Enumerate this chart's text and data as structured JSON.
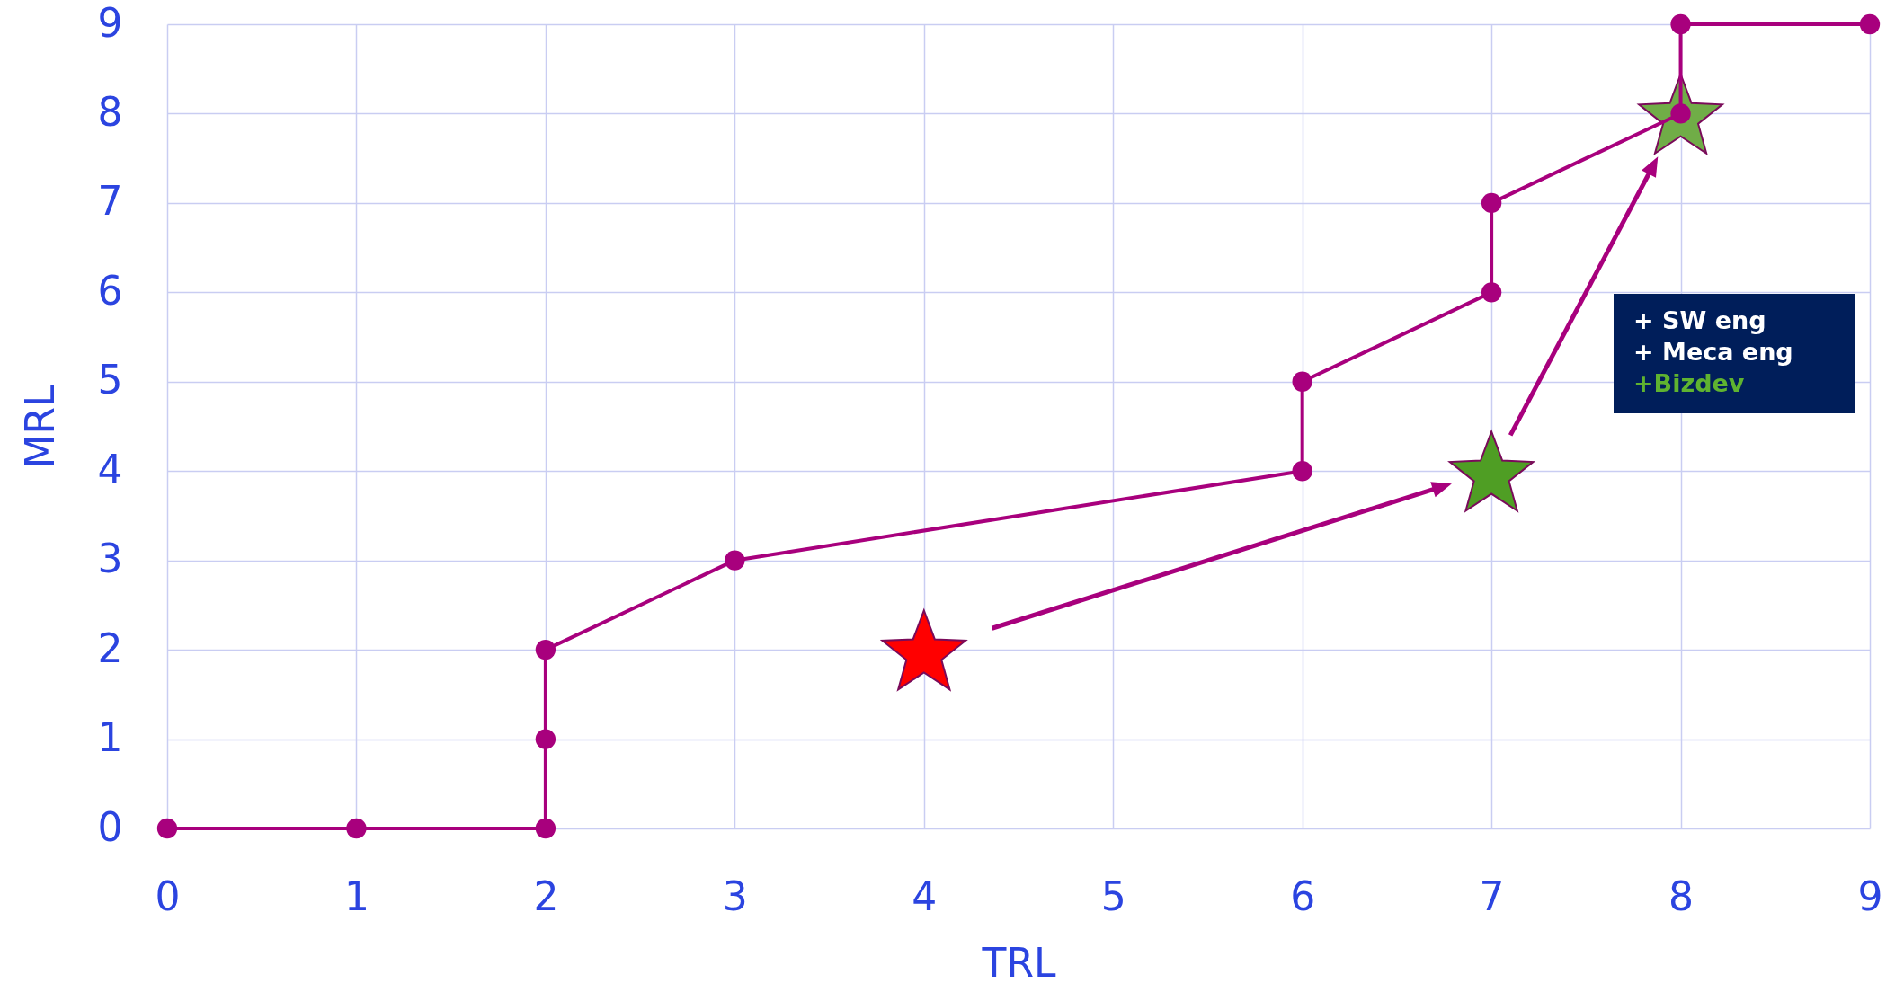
{
  "chart_data": {
    "type": "line",
    "xlabel": "TRL",
    "ylabel": "MRL",
    "x": [
      0,
      1,
      2,
      2,
      2,
      3,
      6,
      6,
      7,
      7,
      8,
      8,
      9
    ],
    "series": [
      {
        "color": "#a8007d",
        "values": [
          0,
          0,
          0,
          1,
          2,
          3,
          4,
          5,
          6,
          7,
          8,
          9,
          9
        ],
        "marker": "circle"
      },
      {
        "type": "scatter",
        "marker": "star",
        "x": [
          4,
          7,
          8
        ],
        "values": [
          2,
          4,
          8
        ],
        "colors": [
          "#ff0000",
          "#4f9e24",
          "#70ad47"
        ]
      }
    ],
    "annotations": [
      "+ SW eng",
      "+ Meca eng",
      "+Bizdev"
    ],
    "xlim": [
      0,
      9
    ],
    "ylim": [
      0,
      9
    ],
    "xticks": [
      0,
      1,
      2,
      3,
      4,
      5,
      6,
      7,
      8,
      9
    ],
    "yticks": [
      0,
      1,
      2,
      3,
      4,
      5,
      6,
      7,
      8,
      9
    ],
    "grid": true
  }
}
